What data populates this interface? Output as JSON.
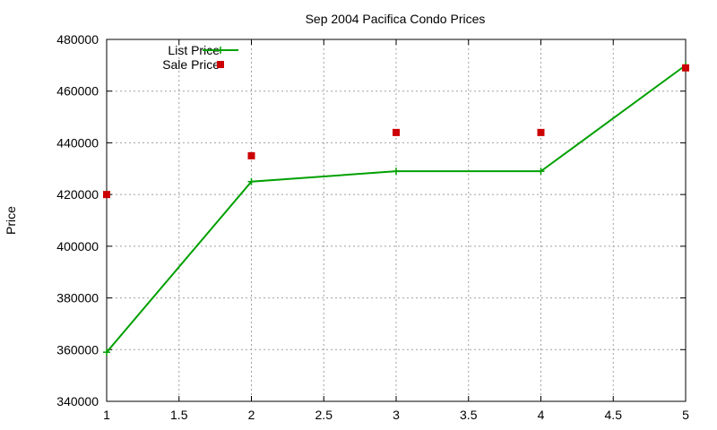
{
  "chart_data": {
    "type": "line",
    "title": "Sep 2004 Pacifica Condo Prices",
    "xlabel": "",
    "ylabel": "Price",
    "xlim": [
      1,
      5
    ],
    "ylim": [
      340000,
      480000
    ],
    "xticks": [
      "1",
      "1.5",
      "2",
      "2.5",
      "3",
      "3.5",
      "4",
      "4.5",
      "5"
    ],
    "yticks": [
      "340000",
      "360000",
      "380000",
      "400000",
      "420000",
      "440000",
      "460000",
      "480000"
    ],
    "grid": true,
    "legend_position": "top-left",
    "series": [
      {
        "name": "List Price",
        "style": "line+points",
        "marker": "plus",
        "color": "#00a000",
        "x": [
          1,
          2,
          3,
          4,
          5
        ],
        "y": [
          359000,
          425000,
          429000,
          429000,
          470000
        ]
      },
      {
        "name": "Sale Price",
        "style": "points",
        "marker": "square",
        "color": "#cc0000",
        "x": [
          1,
          2,
          3,
          4,
          5
        ],
        "y": [
          420000,
          435000,
          444000,
          444000,
          469000
        ]
      }
    ]
  }
}
